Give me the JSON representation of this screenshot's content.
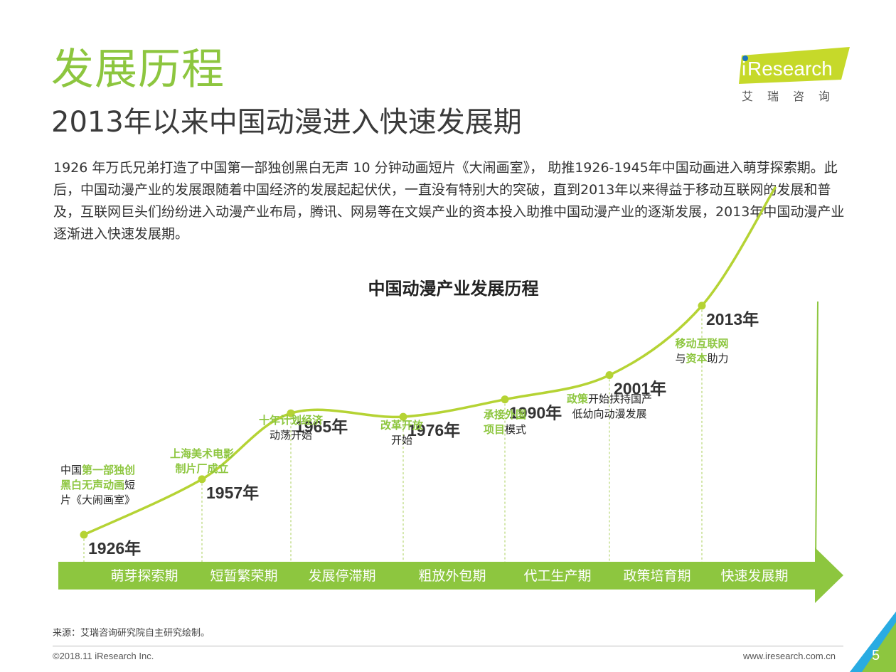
{
  "header": {
    "title": "发展历程",
    "subtitle": "2013年以来中国动漫进入快速发展期",
    "intro": "1926 年万氏兄弟打造了中国第一部独创黑白无声 10 分钟动画短片《大闹画室》， 助推1926-1945年中国动画进入萌芽探索期。此后，中国动漫产业的发展跟随着中国经济的发展起起伏伏，一直没有特别大的突破，直到2013年以来得益于移动互联网的发展和普及，互联网巨头们纷纷进入动漫产业布局，腾讯、网易等在文娱产业的资本投入助推中国动漫产业的逐渐发展，2013年中国动漫产业逐渐进入快速发展期。"
  },
  "logo": {
    "brand_i": "i",
    "brand_rest": "Research",
    "chinese": "艾瑞咨询"
  },
  "colors": {
    "accent": "#8dc63f",
    "text": "#333333",
    "logo_dot": "#1b75bb"
  },
  "chart_data": {
    "type": "timeline",
    "title": "中国动漫产业发展历程",
    "milestones": [
      {
        "year": "1926年",
        "value": 0.0,
        "event_lines": [
          [
            {
              "t": "中国",
              "g": false
            },
            {
              "t": "第一部独创",
              "g": true
            }
          ],
          [
            {
              "t": "黑白无声动画",
              "g": true
            },
            {
              "t": "短",
              "g": false
            }
          ],
          [
            {
              "t": "片《大闹画室》",
              "g": false
            }
          ]
        ]
      },
      {
        "year": "1957年",
        "value": 0.16,
        "event_lines": [
          [
            {
              "t": "上海美术电影",
              "g": true
            }
          ],
          [
            {
              "t": "制片厂成立",
              "g": true
            }
          ]
        ]
      },
      {
        "year": "1965年",
        "value": 0.35,
        "event_lines": [
          [
            {
              "t": "十年计划经济",
              "g": true
            }
          ],
          [
            {
              "t": "动荡开始",
              "g": false
            }
          ]
        ]
      },
      {
        "year": "1976年",
        "value": 0.34,
        "event_lines": [
          [
            {
              "t": "改革开放",
              "g": true
            }
          ],
          [
            {
              "t": "开始",
              "g": false
            }
          ]
        ]
      },
      {
        "year": "1990年",
        "value": 0.39,
        "event_lines": [
          [
            {
              "t": "承接外国",
              "g": true
            }
          ],
          [
            {
              "t": "项目",
              "g": true
            },
            {
              "t": "模式",
              "g": false
            }
          ]
        ]
      },
      {
        "year": "2001年",
        "value": 0.46,
        "event_lines": [
          [
            {
              "t": "政策",
              "g": true
            },
            {
              "t": "开始扶持国产",
              "g": false
            }
          ],
          [
            {
              "t": "低幼向动漫发展",
              "g": false
            }
          ]
        ]
      },
      {
        "year": "2013年",
        "value": 0.66,
        "event_lines": [
          [
            {
              "t": "移动互联网",
              "g": true
            }
          ],
          [
            {
              "t": "与",
              "g": false
            },
            {
              "t": "资本",
              "g": true
            },
            {
              "t": "助力",
              "g": false
            }
          ]
        ]
      }
    ],
    "curve_end_value": 1.0,
    "stages": [
      "萌芽探索期",
      "短暂繁荣期",
      "发展停滞期",
      "粗放外包期",
      "代工生产期",
      "政策培育期",
      "快速发展期"
    ]
  },
  "footer": {
    "source": "来源：艾瑞咨询研究院自主研究绘制。",
    "copyright": "©2018.11 iResearch Inc.",
    "website": "www.iresearch.com.cn",
    "page": "5"
  }
}
